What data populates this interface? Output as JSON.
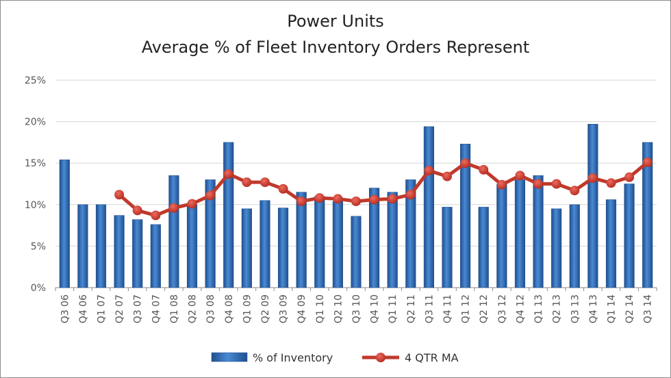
{
  "chart_data": {
    "type": "bar",
    "title": "Power Units",
    "subtitle": "Average % of Fleet Inventory Orders Represent",
    "categories": [
      "Q3 06",
      "Q4 06",
      "Q1 07",
      "Q2 07",
      "Q3 07",
      "Q4 07",
      "Q1 08",
      "Q2 08",
      "Q3 08",
      "Q4 08",
      "Q1 09",
      "Q2 09",
      "Q3 09",
      "Q4 09",
      "Q1 10",
      "Q2 10",
      "Q3 10",
      "Q4 10",
      "Q1 11",
      "Q2 11",
      "Q3 11",
      "Q4 11",
      "Q1 12",
      "Q2 12",
      "Q3 12",
      "Q4 12",
      "Q1 13",
      "Q2 13",
      "Q3 13",
      "Q4 13",
      "Q1 14",
      "Q2 14",
      "Q3 14"
    ],
    "ylim": [
      0,
      25
    ],
    "yticks": [
      "0%",
      "5%",
      "10%",
      "15%",
      "20%",
      "25%"
    ],
    "grid": true,
    "legend_position": "bottom",
    "series": [
      {
        "name": "% of Inventory",
        "kind": "bar",
        "color": "#2e6db4",
        "values": [
          15.4,
          10.0,
          10.0,
          8.7,
          8.2,
          7.6,
          13.5,
          10.0,
          13.0,
          17.5,
          9.5,
          10.5,
          9.6,
          11.5,
          11.0,
          10.4,
          8.6,
          12.0,
          11.5,
          13.0,
          19.4,
          9.7,
          17.3,
          9.7,
          12.5,
          13.0,
          13.5,
          9.5,
          10.0,
          19.7,
          10.6,
          12.5,
          17.5
        ]
      },
      {
        "name": "4 QTR MA",
        "kind": "line",
        "color": "#c0392b",
        "values": [
          null,
          null,
          null,
          11.2,
          9.3,
          8.7,
          9.6,
          10.1,
          11.1,
          13.7,
          12.7,
          12.7,
          11.9,
          10.4,
          10.8,
          10.7,
          10.4,
          10.6,
          10.7,
          11.2,
          14.1,
          13.4,
          15.0,
          14.2,
          12.4,
          13.5,
          12.5,
          12.5,
          11.7,
          13.2,
          12.6,
          13.3,
          15.1
        ]
      }
    ]
  }
}
